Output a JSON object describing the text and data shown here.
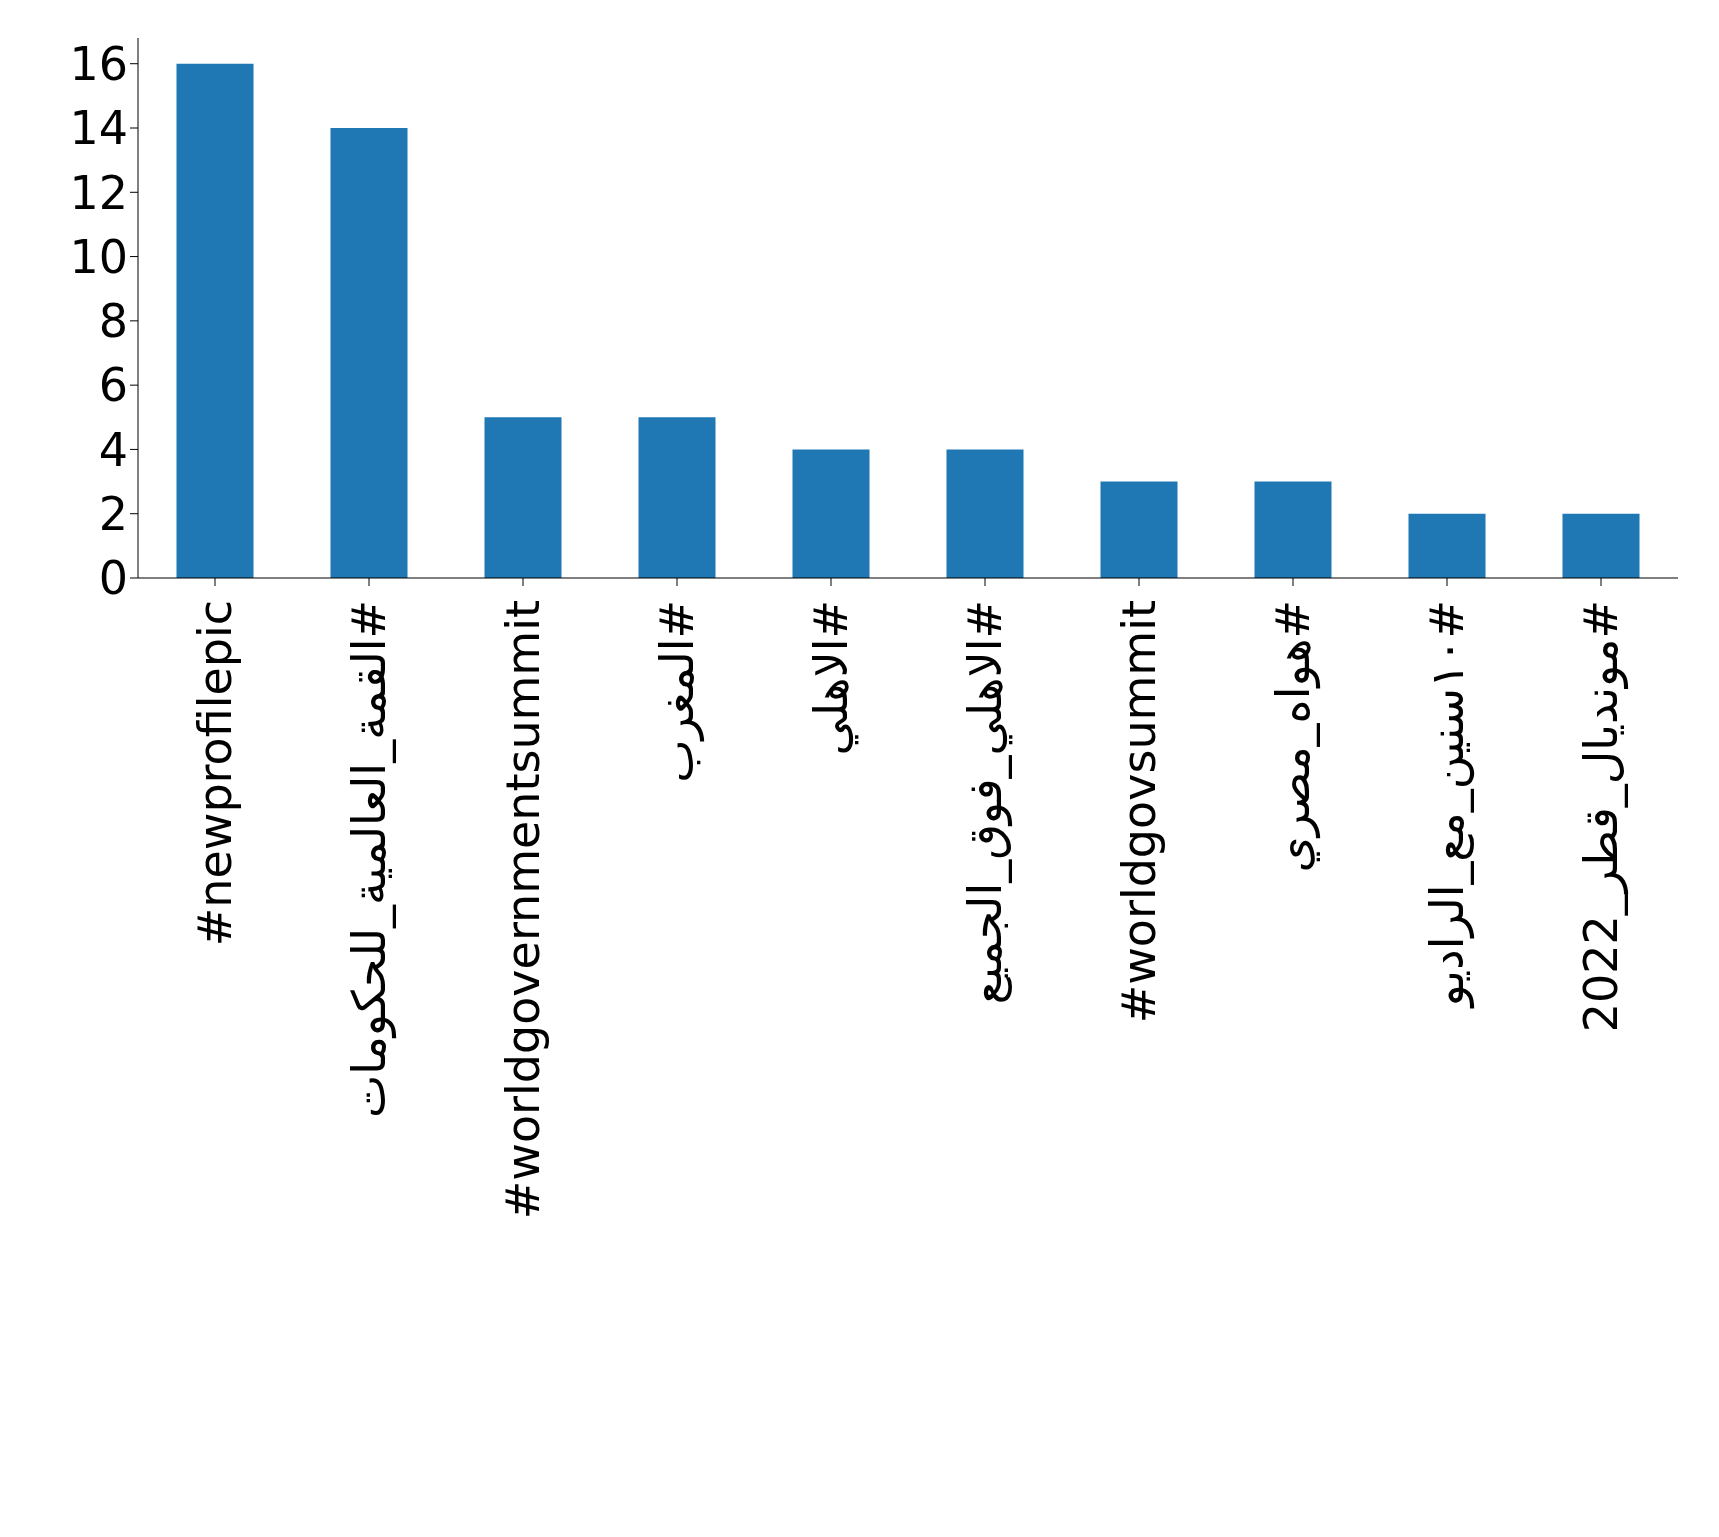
{
  "chart_data": {
    "type": "bar",
    "categories": [
      "#newprofilepic",
      "#القمة_العالمية_للحكومات",
      "#worldgovernmentsummit",
      "#المغرب",
      "#الاهلي",
      "#الاهلي_فوق_الجميع",
      "#worldgovsummit",
      "#هواه_مصري",
      "#١٠سنين_مع_الراديو",
      "#مونديال_قطر_2022"
    ],
    "values": [
      16,
      14,
      5,
      5,
      4,
      4,
      3,
      3,
      2,
      2
    ],
    "color": "#1f77b4",
    "ylim": [
      0,
      16.8
    ],
    "yticks": [
      0,
      2,
      4,
      6,
      8,
      10,
      12,
      14,
      16
    ],
    "grid": false
  }
}
